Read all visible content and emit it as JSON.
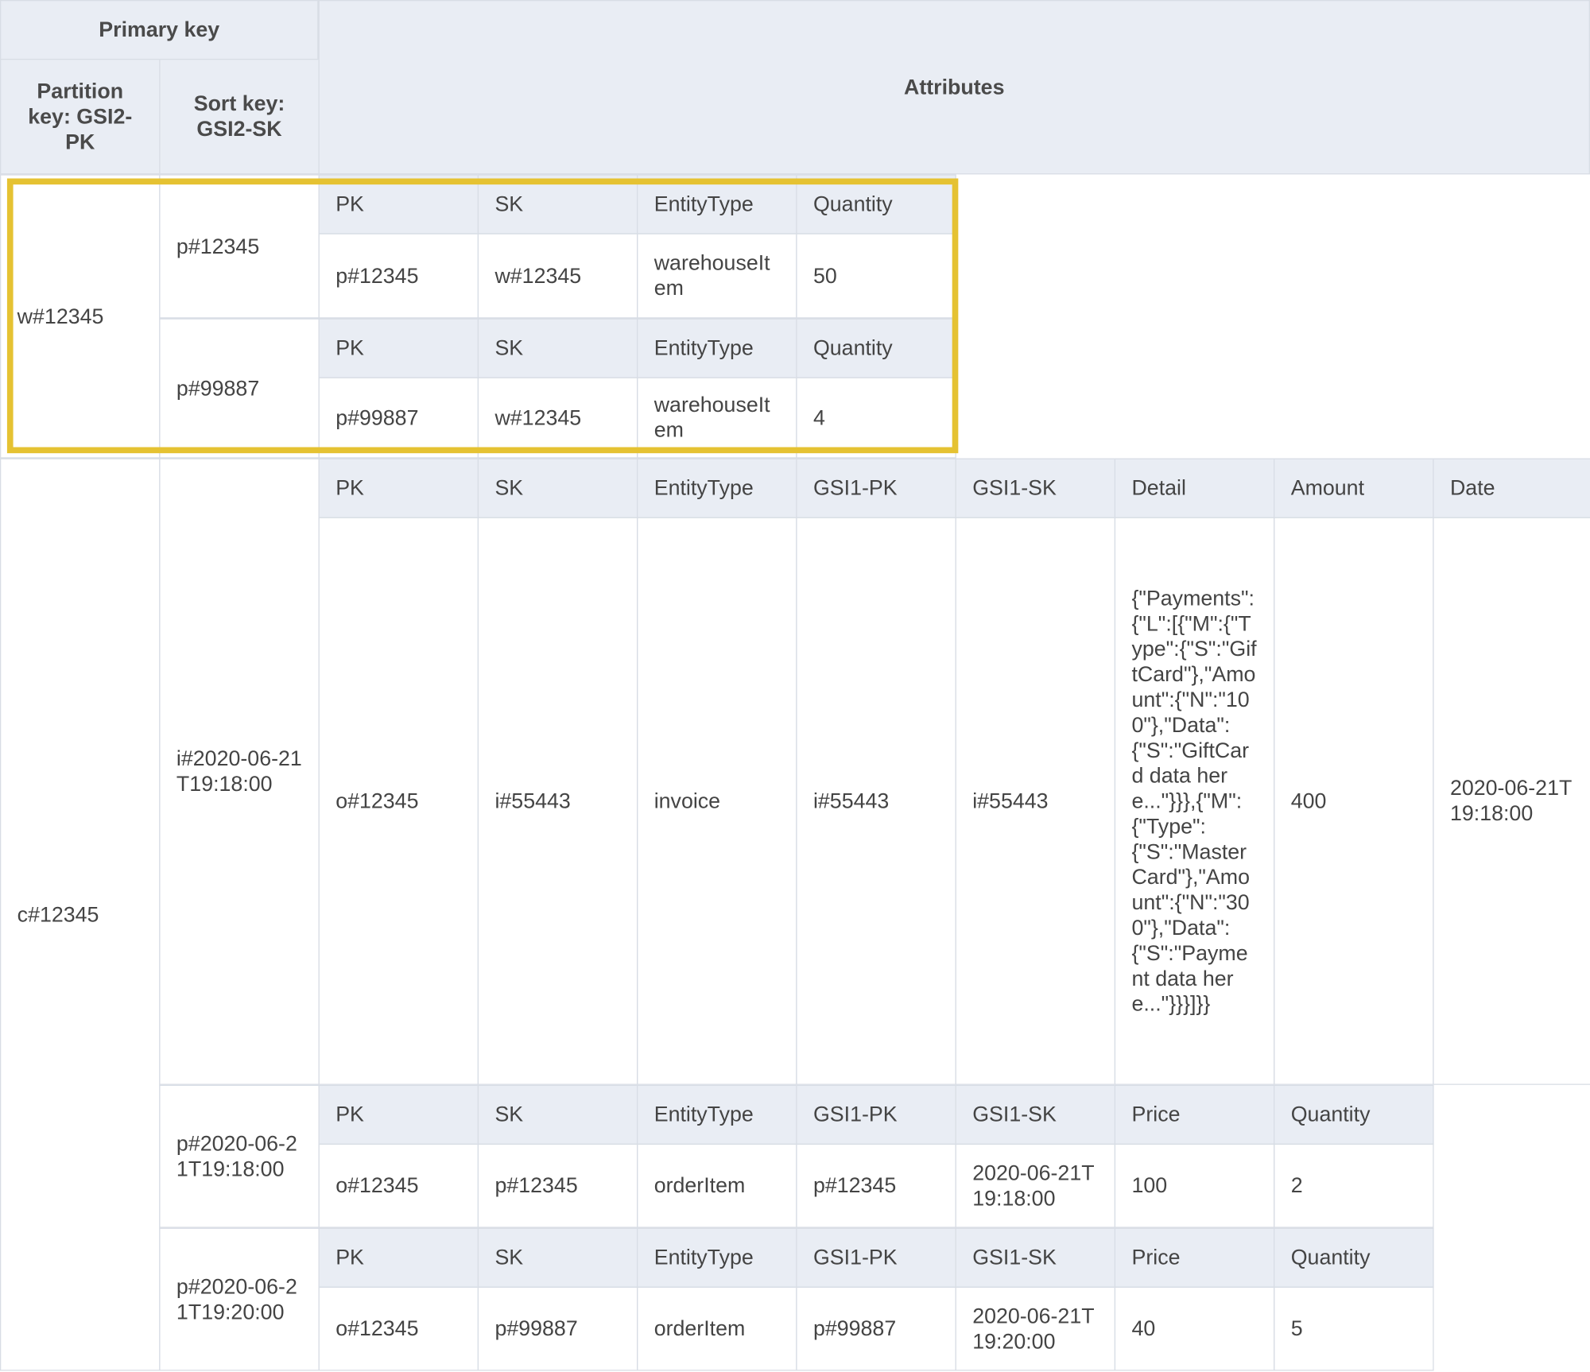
{
  "header": {
    "primary_key": "Primary key",
    "partition_key": "Partition key: GSI2-PK",
    "sort_key": "Sort key: GSI2-SK",
    "attributes": "Attributes"
  },
  "groups": [
    {
      "partition": "w#12345",
      "items": [
        {
          "sort": "p#12345",
          "columns": [
            "PK",
            "SK",
            "EntityType",
            "Quantity"
          ],
          "values": [
            "p#12345",
            "w#12345",
            "warehouseItem",
            "50"
          ]
        },
        {
          "sort": "p#99887",
          "columns": [
            "PK",
            "SK",
            "EntityType",
            "Quantity"
          ],
          "values": [
            "p#99887",
            "w#12345",
            "warehouseItem",
            "4"
          ]
        }
      ]
    },
    {
      "partition": "c#12345",
      "items": [
        {
          "sort": "i#2020-06-21T19:18:00",
          "columns": [
            "PK",
            "SK",
            "EntityType",
            "GSI1-PK",
            "GSI1-SK",
            "Detail",
            "Amount",
            "Date"
          ],
          "values": [
            "o#12345",
            "i#55443",
            "invoice",
            "i#55443",
            "i#55443",
            "{\"Payments\":{\"L\":[{\"M\":{\"Type\":{\"S\":\"GiftCard\"},\"Amount\":{\"N\":\"100\"},\"Data\":{\"S\":\"GiftCard data here...\"}}},{\"M\":{\"Type\":{\"S\":\"MasterCard\"},\"Amount\":{\"N\":\"300\"},\"Data\":{\"S\":\"Payment data here...\"}}}]}}",
            "400",
            "2020-06-21T19:18:00"
          ]
        },
        {
          "sort": "p#2020-06-21T19:18:00",
          "columns": [
            "PK",
            "SK",
            "EntityType",
            "GSI1-PK",
            "GSI1-SK",
            "Price",
            "Quantity"
          ],
          "values": [
            "o#12345",
            "p#12345",
            "orderItem",
            "p#12345",
            "2020-06-21T19:18:00",
            "100",
            "2"
          ]
        },
        {
          "sort": "p#2020-06-21T19:20:00",
          "columns": [
            "PK",
            "SK",
            "EntityType",
            "GSI1-PK",
            "GSI1-SK",
            "Price",
            "Quantity"
          ],
          "values": [
            "o#12345",
            "p#99887",
            "orderItem",
            "p#99887",
            "2020-06-21T19:20:00",
            "40",
            "5"
          ]
        }
      ]
    }
  ]
}
